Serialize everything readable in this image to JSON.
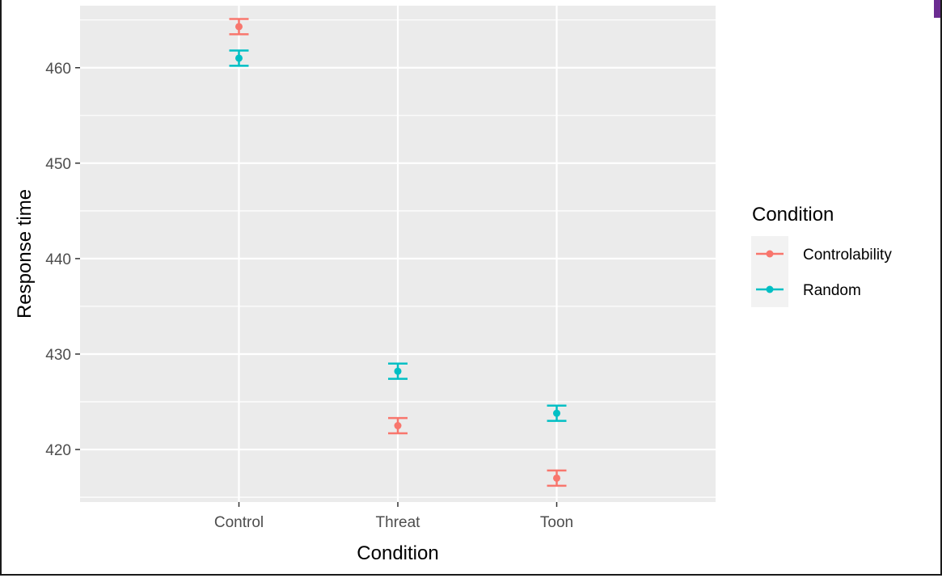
{
  "chart_data": {
    "type": "scatter",
    "xlabel": "Condition",
    "ylabel": "Response time",
    "categories": [
      "Control",
      "Threat",
      "Toon"
    ],
    "ylim": [
      414.5,
      466.5
    ],
    "yticks": [
      420,
      430,
      440,
      450,
      460
    ],
    "grid": true,
    "legend": {
      "title": "Condition",
      "placement": "right"
    },
    "series": [
      {
        "name": "Controlability",
        "color": "#F8766D",
        "values": [
          464.3,
          422.5,
          417.0
        ],
        "lower": [
          463.5,
          421.7,
          416.2
        ],
        "upper": [
          465.1,
          423.3,
          417.8
        ]
      },
      {
        "name": "Random",
        "color": "#00BFC4",
        "values": [
          461.0,
          428.2,
          423.8
        ],
        "lower": [
          460.2,
          427.4,
          423.0
        ],
        "upper": [
          461.8,
          429.0,
          424.6
        ]
      }
    ],
    "panel_background": "#EBEBEB",
    "grid_color": "#FFFFFF"
  },
  "window": {
    "accent_color": "#6B2C91"
  }
}
